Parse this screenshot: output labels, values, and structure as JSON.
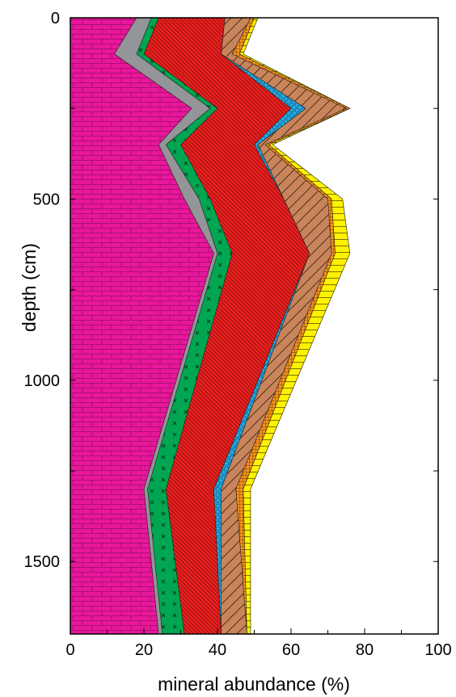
{
  "chart_data": {
    "type": "area",
    "orientation": "vertical-depth",
    "xlabel": "mineral abundance (%)",
    "ylabel": "depth (cm)",
    "xlim": [
      0,
      100
    ],
    "ylim": [
      0,
      1700
    ],
    "y_inverted": true,
    "xticks": [
      0,
      20,
      40,
      60,
      80,
      100
    ],
    "yticks": [
      0,
      500,
      1000,
      1500
    ],
    "depth": [
      0,
      100,
      250,
      350,
      500,
      650,
      1300,
      1700
    ],
    "series": [
      {
        "color": "#e8179c",
        "pattern": "brick",
        "values": [
          18,
          12,
          33,
          24,
          31,
          39,
          20,
          24
        ]
      },
      {
        "color": "#939598",
        "pattern": "solid",
        "values": [
          22,
          18,
          38,
          26,
          35,
          40,
          21,
          25
        ]
      },
      {
        "color": "#00a651",
        "pattern": "cross",
        "values": [
          24,
          20,
          40,
          30,
          38,
          44,
          26,
          31
        ]
      },
      {
        "color": "#e8201e",
        "pattern": "hatch-back",
        "values": [
          42,
          41,
          60,
          50,
          58,
          65,
          39,
          41
        ]
      },
      {
        "color": "#27aae1",
        "pattern": "circles",
        "values": [
          42,
          41,
          64,
          51,
          58,
          65,
          41,
          41
        ]
      },
      {
        "color": "#c8845a",
        "pattern": "hatch-fwd",
        "values": [
          49,
          44,
          75,
          53,
          70,
          71,
          45,
          48
        ]
      },
      {
        "color": "#f7941d",
        "pattern": "grid",
        "values": [
          50,
          46,
          76,
          54,
          71,
          72,
          47,
          48
        ]
      },
      {
        "color": "#fff200",
        "pattern": "horizontal",
        "values": [
          51,
          47,
          76,
          55,
          74,
          76,
          49,
          49
        ]
      }
    ]
  }
}
